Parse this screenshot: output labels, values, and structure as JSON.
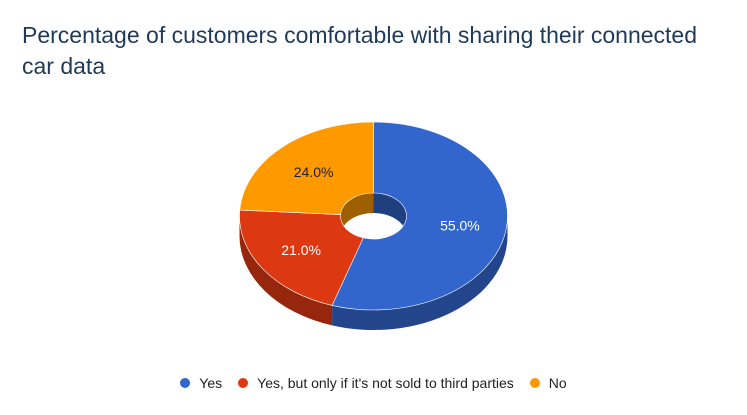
{
  "chart_data": {
    "type": "pie",
    "style": "3d-donut",
    "title": "Percentage of customers comfortable with sharing their connected car data",
    "legend_position": "bottom",
    "slices": [
      {
        "label": "Yes",
        "value": 55.0,
        "value_label": "55.0%",
        "color": "#3366cc",
        "label_color": "#ffffff"
      },
      {
        "label": "Yes, but only if it's not sold to third parties",
        "value": 21.0,
        "value_label": "21.0%",
        "color": "#dc3912",
        "label_color": "#ffffff"
      },
      {
        "label": "No",
        "value": 24.0,
        "value_label": "24.0%",
        "color": "#ff9900",
        "label_color": "#222222"
      }
    ]
  }
}
